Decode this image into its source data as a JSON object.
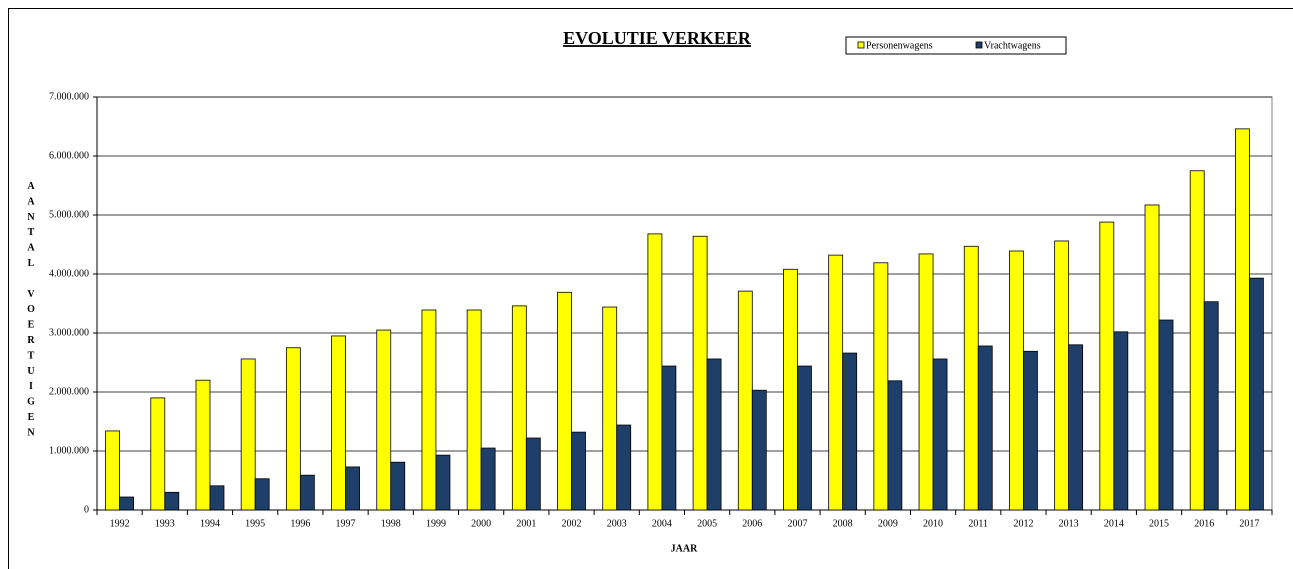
{
  "chart_data": {
    "type": "bar",
    "title": "EVOLUTIE VERKEER",
    "x_label": "JAAR",
    "y_label": "AANTAL VOERTUIGEN",
    "categories": [
      "1992",
      "1993",
      "1994",
      "1995",
      "1996",
      "1997",
      "1998",
      "1999",
      "2000",
      "2001",
      "2002",
      "2003",
      "2004",
      "2005",
      "2006",
      "2007",
      "2008",
      "2009",
      "2010",
      "2011",
      "2012",
      "2013",
      "2014",
      "2015",
      "2016",
      "2017"
    ],
    "series": [
      {
        "name": "Personenwagens",
        "color": "#ffff00",
        "values": [
          1340000,
          1900000,
          2200000,
          2560000,
          2750000,
          2950000,
          3050000,
          3390000,
          3390000,
          3460000,
          3690000,
          3440000,
          4680000,
          4640000,
          3710000,
          4080000,
          4320000,
          4190000,
          4340000,
          4470000,
          4390000,
          4560000,
          4880000,
          5170000,
          5750000,
          6460000
        ]
      },
      {
        "name": "Vrachtwagens",
        "color": "#1f3f6b",
        "values": [
          220000,
          300000,
          410000,
          530000,
          590000,
          730000,
          810000,
          930000,
          1050000,
          1220000,
          1320000,
          1440000,
          2440000,
          2560000,
          2030000,
          2440000,
          2660000,
          2190000,
          2560000,
          2780000,
          2690000,
          2800000,
          3020000,
          3220000,
          3530000,
          3930000
        ]
      }
    ],
    "ylim": [
      0,
      7000000
    ],
    "yticks": [
      0,
      {
        "value": 1000000,
        "label": "1.000.000"
      },
      {
        "value": 2000000,
        "label": "2.000.000"
      },
      {
        "value": 3000000,
        "label": "3.000.000"
      },
      {
        "value": 4000000,
        "label": "4.000.000"
      },
      {
        "value": 5000000,
        "label": "5.000.000"
      },
      {
        "value": 6000000,
        "label": "6.000.000"
      },
      {
        "value": 7000000,
        "label": "7.000.000"
      }
    ],
    "grid": true,
    "legend": "top-right"
  }
}
